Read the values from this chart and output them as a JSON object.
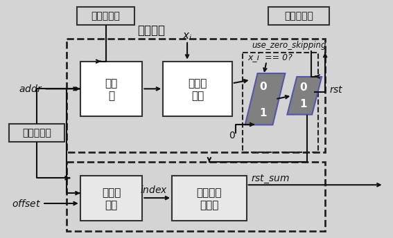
{
  "bg_color": "#d4d4d4",
  "box_face": "#f0f0f0",
  "box_edge": "#333333",
  "mux_face": "#808080",
  "mux_edge": "#5555aa",
  "label_top": "处理单元",
  "label_quanzhong": "权重稀疏性",
  "label_chengji": "乘积稀疏性",
  "label_jizhu": "激励稀疏性",
  "label_use_zero": "use_zero_skipping",
  "label_xi_cmp": "x_i  == 0?",
  "label_xi": "x_i",
  "label_addr": "addr",
  "label_offset": "offset",
  "label_index": "index",
  "label_rst": "rst",
  "label_rst_sum": "rst_sum",
  "label_zero": "0",
  "box1_line1": "存储",
  "box1_line2": "器",
  "box2_line1": "乘法器",
  "box2_line2": "阵列",
  "box3_line1": "指针生",
  "box3_line2": "成器",
  "box4_line1": "稀疏累加",
  "box4_line2": "器阵列",
  "mux1_labels": [
    "0",
    "1"
  ],
  "mux2_labels": [
    "0",
    "1"
  ]
}
